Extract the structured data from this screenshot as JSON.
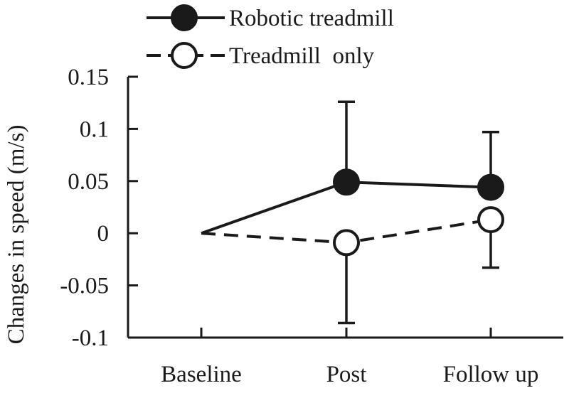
{
  "chart_data": {
    "type": "line",
    "title": "",
    "xlabel": "",
    "ylabel": "Changes in speed (m/s)",
    "categories": [
      "Baseline",
      "Post",
      "Follow up"
    ],
    "ylim": [
      -0.1,
      0.15
    ],
    "yticks": [
      -0.1,
      -0.05,
      0,
      0.05,
      0.1,
      0.15
    ],
    "ytick_labels": [
      "-0.1",
      "-0.05",
      "0",
      "0.05",
      "0.1",
      "0.15"
    ],
    "grid": false,
    "legend": "top",
    "series": [
      {
        "name": "Robotic treadmill",
        "marker": "filled-circle",
        "line": "solid",
        "values": [
          0,
          0.049,
          0.044
        ],
        "error_upper": [
          null,
          0.126,
          0.097
        ],
        "error_lower": [
          null,
          null,
          null
        ]
      },
      {
        "name": "Treadmill  only",
        "marker": "open-circle",
        "line": "dashed",
        "values": [
          0,
          -0.009,
          0.013
        ],
        "error_upper": [
          null,
          null,
          null
        ],
        "error_lower": [
          null,
          -0.086,
          -0.033
        ]
      }
    ],
    "colors": {
      "ink": "#1a1a1a",
      "background": "#ffffff"
    }
  }
}
